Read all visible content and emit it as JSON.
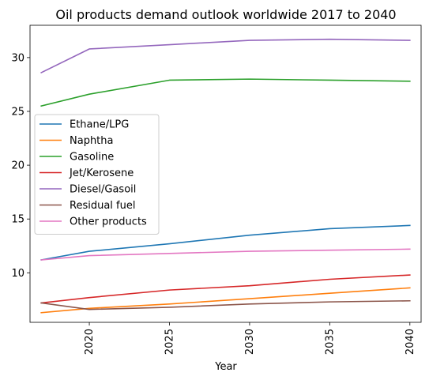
{
  "chart_data": {
    "type": "line",
    "title": "Oil products demand outlook worldwide 2017 to 2040",
    "xlabel": "Year",
    "ylabel": "",
    "xlim": [
      2016.3,
      2040.7
    ],
    "ylim": [
      5.4,
      33.0
    ],
    "x_ticks": [
      2020,
      2025,
      2030,
      2035,
      2040
    ],
    "y_ticks": [
      10,
      15,
      20,
      25,
      30
    ],
    "x": [
      2017,
      2020,
      2025,
      2030,
      2035,
      2040
    ],
    "legend_position": "center-left",
    "series": [
      {
        "name": "Ethane/LPG",
        "color": "#1f77b4",
        "values": [
          11.2,
          12.0,
          12.7,
          13.5,
          14.1,
          14.4
        ]
      },
      {
        "name": "Naphtha",
        "color": "#ff7f0e",
        "values": [
          6.3,
          6.7,
          7.1,
          7.6,
          8.1,
          8.6
        ]
      },
      {
        "name": "Gasoline",
        "color": "#2ca02c",
        "values": [
          25.5,
          26.6,
          27.9,
          28.0,
          27.9,
          27.8
        ]
      },
      {
        "name": "Jet/Kerosene",
        "color": "#d62728",
        "values": [
          7.2,
          7.7,
          8.4,
          8.8,
          9.4,
          9.8
        ]
      },
      {
        "name": "Diesel/Gasoil",
        "color": "#9467bd",
        "values": [
          28.6,
          30.8,
          31.2,
          31.6,
          31.7,
          31.6
        ]
      },
      {
        "name": "Residual fuel",
        "color": "#8c564b",
        "values": [
          7.2,
          6.6,
          6.8,
          7.1,
          7.3,
          7.4
        ]
      },
      {
        "name": "Other products",
        "color": "#e377c2",
        "values": [
          11.2,
          11.6,
          11.8,
          12.0,
          12.1,
          12.2
        ]
      }
    ]
  }
}
